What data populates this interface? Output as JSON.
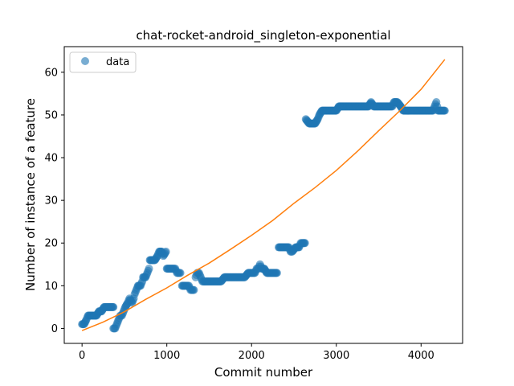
{
  "chart_data": {
    "type": "scatter",
    "title": "chat-rocket-android_singleton-exponential",
    "xlabel": "Commit number",
    "ylabel": "Number of instance of a feature",
    "xlim": [
      -210,
      4490
    ],
    "ylim": [
      -3.5,
      66
    ],
    "xticks": [
      0,
      1000,
      2000,
      3000,
      4000
    ],
    "yticks": [
      0,
      10,
      20,
      30,
      40,
      50,
      60
    ],
    "grid": false,
    "legend": {
      "position": "top-left",
      "entries": [
        "data"
      ]
    },
    "colors": {
      "data": "#1f77b4",
      "fit": "#ff7f0e"
    },
    "series": [
      {
        "name": "data",
        "kind": "scatter",
        "segments": [
          [
            [
              0,
              1
            ],
            [
              25,
              1
            ],
            [
              50,
              2
            ],
            [
              70,
              3
            ],
            [
              110,
              3
            ],
            [
              170,
              3
            ],
            [
              200,
              4
            ],
            [
              230,
              4
            ],
            [
              260,
              5
            ],
            [
              300,
              5
            ],
            [
              370,
              5
            ]
          ],
          [
            [
              370,
              0
            ],
            [
              390,
              0
            ],
            [
              410,
              1
            ],
            [
              430,
              2
            ],
            [
              450,
              3
            ],
            [
              470,
              3
            ],
            [
              490,
              4
            ],
            [
              510,
              5
            ],
            [
              540,
              6
            ],
            [
              560,
              7
            ],
            [
              590,
              6
            ],
            [
              610,
              7
            ],
            [
              620,
              8
            ],
            [
              640,
              9
            ],
            [
              660,
              10
            ],
            [
              690,
              10
            ],
            [
              710,
              11
            ],
            [
              720,
              12
            ],
            [
              750,
              12
            ],
            [
              770,
              13
            ],
            [
              790,
              14
            ],
            [
              800,
              16
            ],
            [
              830,
              16
            ],
            [
              860,
              16
            ],
            [
              890,
              17
            ],
            [
              910,
              18
            ],
            [
              940,
              18
            ],
            [
              960,
              17
            ],
            [
              990,
              18
            ]
          ],
          [
            [
              1000,
              14
            ],
            [
              1040,
              14
            ],
            [
              1080,
              14
            ],
            [
              1100,
              14
            ],
            [
              1120,
              13
            ],
            [
              1140,
              13
            ],
            [
              1160,
              13
            ]
          ],
          [
            [
              1180,
              10
            ],
            [
              1220,
              10
            ],
            [
              1240,
              10
            ],
            [
              1260,
              10
            ],
            [
              1280,
              9
            ],
            [
              1300,
              9
            ],
            [
              1320,
              9
            ]
          ],
          [
            [
              1340,
              12
            ],
            [
              1360,
              13
            ],
            [
              1380,
              13
            ],
            [
              1400,
              12
            ],
            [
              1420,
              11
            ],
            [
              1440,
              11
            ],
            [
              1480,
              11
            ],
            [
              1520,
              11
            ],
            [
              1560,
              11
            ],
            [
              1600,
              11
            ],
            [
              1640,
              11
            ],
            [
              1680,
              12
            ],
            [
              1720,
              12
            ],
            [
              1760,
              12
            ],
            [
              1800,
              12
            ],
            [
              1840,
              12
            ],
            [
              1880,
              12
            ],
            [
              1920,
              12
            ],
            [
              1960,
              13
            ],
            [
              2000,
              13
            ],
            [
              2040,
              13
            ],
            [
              2060,
              14
            ],
            [
              2080,
              14
            ],
            [
              2100,
              15
            ],
            [
              2120,
              14
            ],
            [
              2150,
              14
            ],
            [
              2180,
              13
            ],
            [
              2220,
              13
            ],
            [
              2260,
              13
            ],
            [
              2300,
              13
            ]
          ],
          [
            [
              2320,
              19
            ],
            [
              2360,
              19
            ],
            [
              2400,
              19
            ],
            [
              2440,
              19
            ],
            [
              2460,
              18
            ],
            [
              2480,
              18
            ],
            [
              2520,
              19
            ],
            [
              2560,
              19
            ],
            [
              2580,
              20
            ],
            [
              2600,
              20
            ],
            [
              2630,
              20
            ]
          ],
          [
            [
              2640,
              49
            ],
            [
              2680,
              48
            ],
            [
              2720,
              48
            ],
            [
              2750,
              48
            ],
            [
              2780,
              49
            ],
            [
              2800,
              50
            ],
            [
              2830,
              51
            ],
            [
              2880,
              51
            ],
            [
              2940,
              51
            ],
            [
              3000,
              51
            ],
            [
              3030,
              52
            ],
            [
              3080,
              52
            ],
            [
              3140,
              52
            ],
            [
              3200,
              52
            ],
            [
              3260,
              52
            ],
            [
              3320,
              52
            ],
            [
              3380,
              52
            ],
            [
              3410,
              53
            ],
            [
              3440,
              52
            ],
            [
              3500,
              52
            ],
            [
              3560,
              52
            ],
            [
              3620,
              52
            ],
            [
              3660,
              52
            ],
            [
              3680,
              53
            ],
            [
              3720,
              53
            ],
            [
              3760,
              52
            ],
            [
              3790,
              51
            ],
            [
              3840,
              51
            ],
            [
              3880,
              51
            ],
            [
              3920,
              51
            ],
            [
              3980,
              51
            ],
            [
              4040,
              51
            ],
            [
              4100,
              51
            ],
            [
              4140,
              51
            ],
            [
              4160,
              52
            ],
            [
              4180,
              53
            ],
            [
              4200,
              51
            ],
            [
              4240,
              51
            ],
            [
              4280,
              51
            ]
          ]
        ]
      },
      {
        "name": "",
        "kind": "line",
        "x": [
          0,
          250,
          500,
          750,
          1000,
          1250,
          1500,
          1750,
          2000,
          2250,
          2500,
          2750,
          3000,
          3250,
          3500,
          3750,
          4000,
          4280
        ],
        "y": [
          -0.5,
          1.5,
          3.9,
          6.8,
          9.5,
          12.5,
          15.3,
          18.5,
          21.8,
          25.3,
          29.3,
          33.0,
          37.0,
          41.5,
          46.3,
          51.0,
          56.0,
          63.0
        ]
      }
    ]
  }
}
